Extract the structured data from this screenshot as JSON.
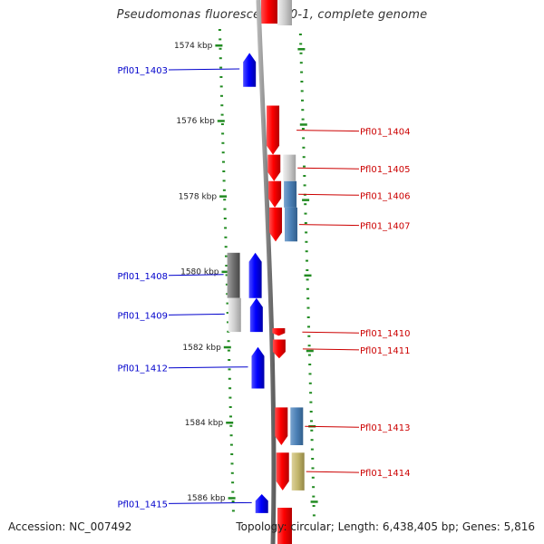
{
  "title": "Pseudomonas fluorescens Pf0-1, complete genome",
  "footer": {
    "accession": "Accession: NC_007492",
    "summary": "Topology: circular; Length: 6,438,405 bp; Genes: 5,816"
  },
  "colors": {
    "forward_gene": "#ff0000",
    "reverse_gene": "#0000ff",
    "forward_label": "#cc0000",
    "reverse_label": "#0000cc",
    "backbone": "#888888",
    "tick": "#228b22",
    "cog_steel": "#4a7fb5",
    "cog_light_gray": "#cccccc",
    "cog_dark_gray": "#6f6f6f",
    "cog_khaki": "#c2b56b"
  },
  "scale_labels": [
    {
      "text": "1574 kbp",
      "kbp": 1574
    },
    {
      "text": "1576 kbp",
      "kbp": 1576
    },
    {
      "text": "1578 kbp",
      "kbp": 1578
    },
    {
      "text": "1580 kbp",
      "kbp": 1580
    },
    {
      "text": "1582 kbp",
      "kbp": 1582
    },
    {
      "text": "1584 kbp",
      "kbp": 1584
    },
    {
      "text": "1586 kbp",
      "kbp": 1586
    }
  ],
  "genes": [
    {
      "label": "Pfl01_1403",
      "strand": "-",
      "start_kbp": 1574.2,
      "end_kbp": 1575.1,
      "cog": null
    },
    {
      "label": "Pfl01_1404",
      "strand": "+",
      "start_kbp": 1575.6,
      "end_kbp": 1576.9,
      "cog": null
    },
    {
      "label": "Pfl01_1405",
      "strand": "+",
      "start_kbp": 1576.9,
      "end_kbp": 1577.6,
      "cog": "cog_light_gray"
    },
    {
      "label": "Pfl01_1406",
      "strand": "+",
      "start_kbp": 1577.6,
      "end_kbp": 1578.3,
      "cog": "cog_steel"
    },
    {
      "label": "Pfl01_1407",
      "strand": "+",
      "start_kbp": 1578.3,
      "end_kbp": 1579.2,
      "cog": "cog_steel"
    },
    {
      "label": "Pfl01_1408",
      "strand": "-",
      "start_kbp": 1579.5,
      "end_kbp": 1580.7,
      "cog": "cog_dark_gray"
    },
    {
      "label": "Pfl01_1409",
      "strand": "-",
      "start_kbp": 1580.7,
      "end_kbp": 1581.6,
      "cog": "cog_light_gray"
    },
    {
      "label": "Pfl01_1410",
      "strand": "+",
      "start_kbp": 1581.5,
      "end_kbp": 1581.7,
      "cog": null
    },
    {
      "label": "Pfl01_1411",
      "strand": "+",
      "start_kbp": 1581.8,
      "end_kbp": 1582.3,
      "cog": null
    },
    {
      "label": "Pfl01_1412",
      "strand": "-",
      "start_kbp": 1582.0,
      "end_kbp": 1583.1,
      "cog": null
    },
    {
      "label": "Pfl01_1413",
      "strand": "+",
      "start_kbp": 1583.6,
      "end_kbp": 1584.6,
      "cog": "cog_steel"
    },
    {
      "label": "Pfl01_1414",
      "strand": "+",
      "start_kbp": 1584.8,
      "end_kbp": 1585.8,
      "cog": "cog_khaki"
    },
    {
      "label": "Pfl01_1415",
      "strand": "-",
      "start_kbp": 1585.9,
      "end_kbp": 1586.4,
      "cog": null
    }
  ]
}
